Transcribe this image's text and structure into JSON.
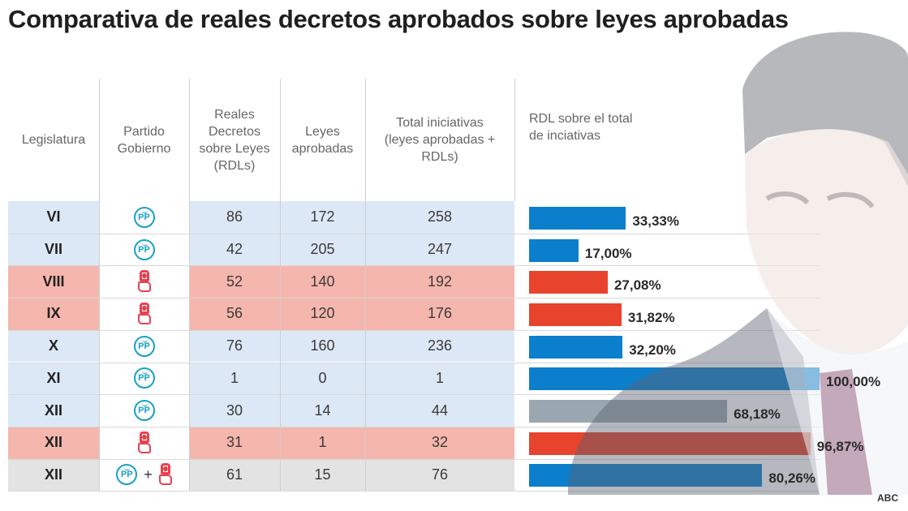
{
  "title": "Comparativa de reales decretos aprobados sobre leyes aprobadas",
  "source": "ABC",
  "colors": {
    "pp_row": "#dce8f6",
    "psoe_row": "#f5b6ad",
    "mixed_row": "#e3e3e3",
    "pp_bar": "#0b7fcc",
    "psoe_bar": "#e8432c",
    "gray_bar": "#9aa6b0"
  },
  "columns": [
    "Legislatura",
    "Partido Gobierno",
    "Reales Decretos sobre Leyes (RDLs)",
    "Leyes aprobadas",
    "Total iniciativas (leyes aprobadas + RDLs)",
    "RDL sobre el total de inciativas"
  ],
  "header_lines": {
    "legislatura": [
      "Legislatura"
    ],
    "partido": [
      "Partido",
      "Gobierno"
    ],
    "rdl": [
      "Reales",
      "Decretos",
      "sobre Leyes",
      "(RDLs)"
    ],
    "leyes": [
      "Leyes",
      "aprobadas"
    ],
    "total": [
      "Total iniciativas",
      "(leyes aprobadas +",
      "RDLs)"
    ],
    "pct": [
      "RDL sobre el total",
      "de inciativas"
    ]
  },
  "party_plus": "+",
  "pp_logo_text": "PP",
  "rows": [
    {
      "legislatura": "VI",
      "partido": "PP",
      "rdl": "86",
      "leyes": "172",
      "total": "258",
      "pct_label": "33,33%",
      "row_color": "pp",
      "bar_color": "pp"
    },
    {
      "legislatura": "VII",
      "partido": "PP",
      "rdl": "42",
      "leyes": "205",
      "total": "247",
      "pct_label": "17,00%",
      "row_color": "pp",
      "bar_color": "pp"
    },
    {
      "legislatura": "VIII",
      "partido": "PSOE",
      "rdl": "52",
      "leyes": "140",
      "total": "192",
      "pct_label": "27,08%",
      "row_color": "psoe",
      "bar_color": "psoe"
    },
    {
      "legislatura": "IX",
      "partido": "PSOE",
      "rdl": "56",
      "leyes": "120",
      "total": "176",
      "pct_label": "31,82%",
      "row_color": "psoe",
      "bar_color": "psoe"
    },
    {
      "legislatura": "X",
      "partido": "PP",
      "rdl": "76",
      "leyes": "160",
      "total": "236",
      "pct_label": "32,20%",
      "row_color": "pp",
      "bar_color": "pp"
    },
    {
      "legislatura": "XI",
      "partido": "PP",
      "rdl": "1",
      "leyes": "0",
      "total": "1",
      "pct_label": "100,00%",
      "row_color": "pp",
      "bar_color": "pp"
    },
    {
      "legislatura": "XII",
      "partido": "PP",
      "rdl": "30",
      "leyes": "14",
      "total": "44",
      "pct_label": "68,18%",
      "row_color": "pp",
      "bar_color": "gray"
    },
    {
      "legislatura": "XII",
      "partido": "PSOE",
      "rdl": "31",
      "leyes": "1",
      "total": "32",
      "pct_label": "96,87%",
      "row_color": "psoe",
      "bar_color": "psoe"
    },
    {
      "legislatura": "XII",
      "partido": "PP+PSOE",
      "rdl": "61",
      "leyes": "15",
      "total": "76",
      "pct_label": "80,26%",
      "row_color": "mixed",
      "bar_color": "pp"
    }
  ],
  "chart_data": {
    "type": "bar",
    "orientation": "horizontal",
    "title": "Comparativa de reales decretos aprobados sobre leyes aprobadas",
    "xlabel": "RDL sobre el total de inciativas",
    "ylabel": "Legislatura",
    "categories": [
      "VI",
      "VII",
      "VIII",
      "IX",
      "X",
      "XI",
      "XII (PP)",
      "XII (PSOE)",
      "XII (PP+PSOE)"
    ],
    "values": [
      33.33,
      17.0,
      27.08,
      31.82,
      32.2,
      100.0,
      68.18,
      96.87,
      80.26
    ],
    "value_labels": [
      "33,33%",
      "17,00%",
      "27,08%",
      "31,82%",
      "32,20%",
      "100,00%",
      "68,18%",
      "96,87%",
      "80,26%"
    ],
    "xlim": [
      0,
      100
    ],
    "units": "%",
    "grid": false,
    "legend": "none"
  }
}
